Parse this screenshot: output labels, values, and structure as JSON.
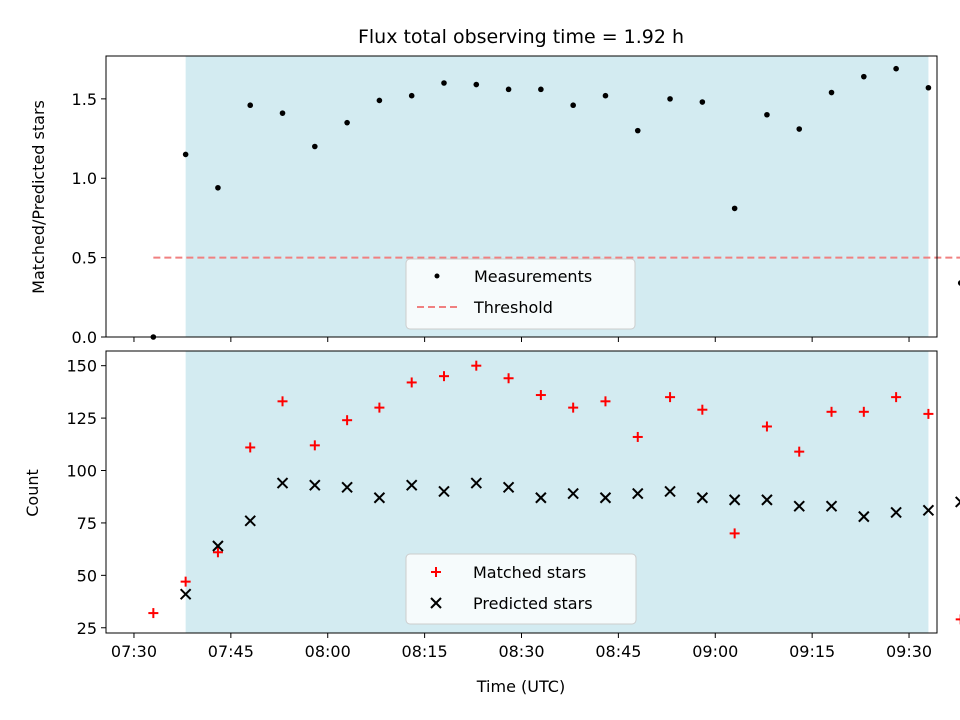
{
  "chart_data": [
    {
      "panel": "top",
      "type": "scatter",
      "title": "Flux total observing time = 1.92 h",
      "xlabel": "",
      "ylabel": "Matched/Predicted stars",
      "xlim": [
        -4.33,
        124.33
      ],
      "ylim": [
        0,
        1.77
      ],
      "yticks": [
        0.0,
        0.5,
        1.0,
        1.5
      ],
      "ytick_labels": [
        "0.0",
        "0.5",
        "1.0",
        "1.5"
      ],
      "xticks": [
        0,
        15,
        30,
        45,
        60,
        75,
        90,
        105,
        120
      ],
      "observing_window": [
        8,
        123
      ],
      "observing_window_color": "#d3ebf1",
      "series": [
        {
          "name": "Measurements",
          "kind": "dot",
          "color": "#000000",
          "x": [
            3,
            8,
            13,
            18,
            23,
            28,
            33,
            38,
            43,
            48,
            53,
            58,
            63,
            68,
            73,
            78,
            83,
            88,
            93,
            98,
            103,
            108,
            113,
            118,
            123,
            128
          ],
          "y": [
            0.0,
            1.15,
            0.94,
            1.46,
            1.41,
            1.2,
            1.35,
            1.49,
            1.52,
            1.6,
            1.59,
            1.56,
            1.56,
            1.46,
            1.52,
            1.3,
            1.5,
            1.48,
            0.81,
            1.4,
            1.31,
            1.54,
            1.64,
            1.69,
            1.57,
            0.34
          ]
        },
        {
          "name": "Threshold",
          "kind": "dashed-line",
          "color": "#f08080",
          "x": [
            3,
            128
          ],
          "y": [
            0.5,
            0.5
          ]
        }
      ],
      "legend": [
        "Measurements",
        "Threshold"
      ],
      "legend_position": "bottom-center"
    },
    {
      "panel": "bottom",
      "type": "scatter",
      "title": "",
      "xlabel": "Time (UTC)",
      "ylabel": "Count",
      "xlim": [
        -4.33,
        124.33
      ],
      "ylim": [
        22.5,
        157
      ],
      "yticks": [
        25,
        50,
        75,
        100,
        125,
        150
      ],
      "ytick_labels": [
        "25",
        "50",
        "75",
        "100",
        "125",
        "150"
      ],
      "xticks": [
        0,
        15,
        30,
        45,
        60,
        75,
        90,
        105,
        120
      ],
      "xtick_labels": [
        "07:30",
        "07:45",
        "08:00",
        "08:15",
        "08:30",
        "08:45",
        "09:00",
        "09:15",
        "09:30"
      ],
      "observing_window": [
        8,
        123
      ],
      "observing_window_color": "#d3ebf1",
      "series": [
        {
          "name": "Matched stars",
          "kind": "plus",
          "color": "#ff0000",
          "x": [
            3,
            8,
            13,
            18,
            23,
            28,
            33,
            38,
            43,
            48,
            53,
            58,
            63,
            68,
            73,
            78,
            83,
            88,
            93,
            98,
            103,
            108,
            113,
            118,
            123,
            128
          ],
          "y": [
            32,
            47,
            61,
            111,
            133,
            112,
            124,
            130,
            142,
            145,
            150,
            144,
            136,
            130,
            133,
            116,
            135,
            129,
            70,
            121,
            109,
            128,
            128,
            135,
            127,
            29
          ]
        },
        {
          "name": "Predicted stars",
          "kind": "x",
          "color": "#000000",
          "x": [
            8,
            13,
            18,
            23,
            28,
            33,
            38,
            43,
            48,
            53,
            58,
            63,
            68,
            73,
            78,
            83,
            88,
            93,
            98,
            103,
            108,
            113,
            118,
            123,
            128
          ],
          "y": [
            41,
            64,
            76,
            94,
            93,
            92,
            87,
            93,
            90,
            94,
            92,
            87,
            89,
            87,
            89,
            90,
            87,
            86,
            86,
            83,
            83,
            78,
            80,
            81,
            85
          ]
        }
      ],
      "legend": [
        "Matched stars",
        "Predicted stars"
      ],
      "legend_position": "bottom-center"
    }
  ]
}
